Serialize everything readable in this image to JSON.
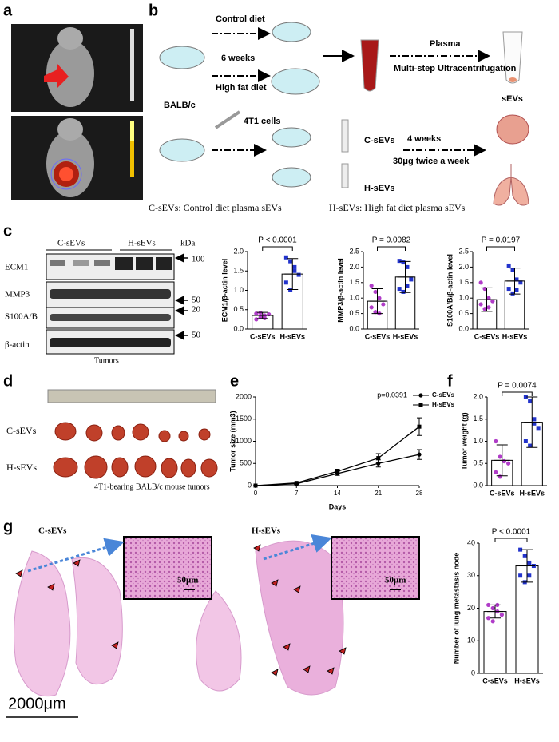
{
  "panels": {
    "a": {
      "label": "a"
    },
    "b": {
      "label": "b",
      "control_diet": "Control diet",
      "weeks6": "6 weeks",
      "high_fat_diet": "High fat diet",
      "strain": "BALB/c",
      "plasma": "Plasma",
      "ultracentrifugation": "Multi-step Ultracentrifugation",
      "sevs": "sEVs",
      "cells": "4T1 cells",
      "c_sevs": "C-sEVs",
      "h_sevs": "H-sEVs",
      "weeks4": "4 weeks",
      "dose": "30μg twice a week",
      "c_note": "C-sEVs: Control diet plasma sEVs",
      "h_note": "H-sEVs: High fat diet plasma sEVs"
    },
    "c": {
      "label": "c",
      "groups": [
        "C-sEVs",
        "H-sEVs"
      ],
      "kda": "kDa",
      "rows": [
        "ECM1",
        "MMP3",
        "S100A/B",
        "β-actin"
      ],
      "markers": [
        "100",
        "50",
        "20",
        "50"
      ],
      "caption": "Tumors"
    },
    "d": {
      "label": "d",
      "rows": [
        "C-sEVs",
        "H-sEVs"
      ],
      "caption": "4T1-bearing BALB/c mouse tumors"
    },
    "e": {
      "label": "e"
    },
    "f": {
      "label": "f"
    },
    "g": {
      "label": "g",
      "left": "C-sEVs",
      "right": "H-sEVs",
      "inset_scale_left": "50μm",
      "inset_scale_right": "50μm",
      "scale": "2000μm"
    }
  },
  "chart_data": [
    {
      "type": "dotbar",
      "ylabel": "ECM1/β-actin  level",
      "categories": [
        "C-sEVs",
        "H-sEVs"
      ],
      "colors": [
        "#b03cc8",
        "#2233cc"
      ],
      "values": [
        0.35,
        1.42
      ],
      "errors": [
        0.08,
        0.4
      ],
      "points": [
        [
          0.25,
          0.3,
          0.35,
          0.38,
          0.4,
          0.42,
          0.28
        ],
        [
          1.85,
          1.75,
          1.6,
          1.4,
          1.2,
          1.0,
          1.5
        ]
      ],
      "annotation": "P < 0.0001",
      "ylim": [
        0,
        2.0
      ],
      "yticks": [
        {
          "value": 0,
          "label": "0.0"
        },
        0.5,
        {
          "value": 1,
          "label": "1.0"
        },
        1.5,
        {
          "value": 2,
          "label": "2.0"
        }
      ]
    },
    {
      "type": "dotbar",
      "ylabel": "MMP3/β-actin  level",
      "categories": [
        "C-sEVs",
        "H-sEVs"
      ],
      "colors": [
        "#b03cc8",
        "#2233cc"
      ],
      "values": [
        0.9,
        1.68
      ],
      "errors": [
        0.4,
        0.5
      ],
      "points": [
        [
          1.4,
          1.2,
          1.0,
          0.8,
          0.7,
          0.55,
          0.5
        ],
        [
          2.2,
          2.15,
          2.0,
          1.6,
          1.3,
          1.2,
          1.4
        ]
      ],
      "annotation": "P = 0.0082",
      "ylim": [
        0,
        2.5
      ],
      "yticks": [
        {
          "value": 0,
          "label": "0.0"
        },
        0.5,
        {
          "value": 1,
          "label": "1.0"
        },
        1.5,
        {
          "value": 2,
          "label": "2.0"
        },
        2.5
      ]
    },
    {
      "type": "dotbar",
      "ylabel": "S100A/B/β-actin level",
      "categories": [
        "C-sEVs",
        "H-sEVs"
      ],
      "colors": [
        "#b03cc8",
        "#2233cc"
      ],
      "values": [
        0.95,
        1.55
      ],
      "errors": [
        0.38,
        0.42
      ],
      "points": [
        [
          1.5,
          1.3,
          1.0,
          0.9,
          0.8,
          0.65,
          0.7
        ],
        [
          2.05,
          1.9,
          1.6,
          1.5,
          1.3,
          1.15,
          1.25
        ]
      ],
      "annotation": "P = 0.0197",
      "ylim": [
        0,
        2.5
      ],
      "yticks": [
        {
          "value": 0,
          "label": "0.0"
        },
        0.5,
        {
          "value": 1,
          "label": "1.0"
        },
        1.5,
        {
          "value": 2,
          "label": "2.0"
        },
        2.5
      ]
    },
    {
      "type": "line",
      "ylabel": "Tumor size (mm3)",
      "xlabel": "Days",
      "annotation": "p=0.0391",
      "legend": "right",
      "x": [
        0,
        7,
        14,
        21,
        28
      ],
      "xlim": [
        0,
        28
      ],
      "xticks": [
        0,
        7,
        14,
        21,
        28
      ],
      "ylim": [
        0,
        2000
      ],
      "yticks": [
        0,
        500,
        1000,
        1500,
        2000
      ],
      "series": [
        {
          "name": "C-sEVs",
          "color": "#000000",
          "marker": "circle",
          "values": [
            0,
            40,
            270,
            500,
            700
          ],
          "errors": [
            0,
            15,
            40,
            80,
            110
          ]
        },
        {
          "name": "H-sEVs",
          "color": "#000000",
          "marker": "square",
          "values": [
            0,
            60,
            320,
            620,
            1330
          ],
          "errors": [
            0,
            20,
            50,
            100,
            200
          ]
        }
      ]
    },
    {
      "type": "dotbar",
      "ylabel": "Tumor weight (g)",
      "categories": [
        "C-sEVs",
        "H-sEVs"
      ],
      "colors": [
        "#b03cc8",
        "#2233cc"
      ],
      "values": [
        0.57,
        1.43
      ],
      "errors": [
        0.35,
        0.57
      ],
      "points": [
        [
          1.0,
          0.65,
          0.55,
          0.5,
          0.3,
          0.2,
          0.55
        ],
        [
          2.0,
          1.9,
          1.5,
          1.3,
          1.0,
          0.9,
          1.4
        ]
      ],
      "annotation": "P = 0.0074",
      "ylim": [
        0,
        2.0
      ],
      "yticks": [
        {
          "value": 0,
          "label": "0.0"
        },
        0.5,
        {
          "value": 1,
          "label": "1.0"
        },
        1.5,
        {
          "value": 2,
          "label": "2.0"
        }
      ]
    },
    {
      "type": "dotbar",
      "ylabel": "Number of lung metastasis node",
      "categories": [
        "C-sEVs",
        "H-sEVs"
      ],
      "colors": [
        "#b03cc8",
        "#2233cc"
      ],
      "values": [
        19,
        33
      ],
      "errors": [
        2,
        5
      ],
      "points": [
        [
          21,
          20,
          19,
          18,
          17,
          16,
          21
        ],
        [
          38,
          36,
          34,
          33,
          30,
          28,
          30
        ]
      ],
      "annotation": "P < 0.0001",
      "ylim": [
        0,
        40
      ],
      "yticks": [
        0,
        10,
        20,
        30,
        40
      ]
    }
  ]
}
